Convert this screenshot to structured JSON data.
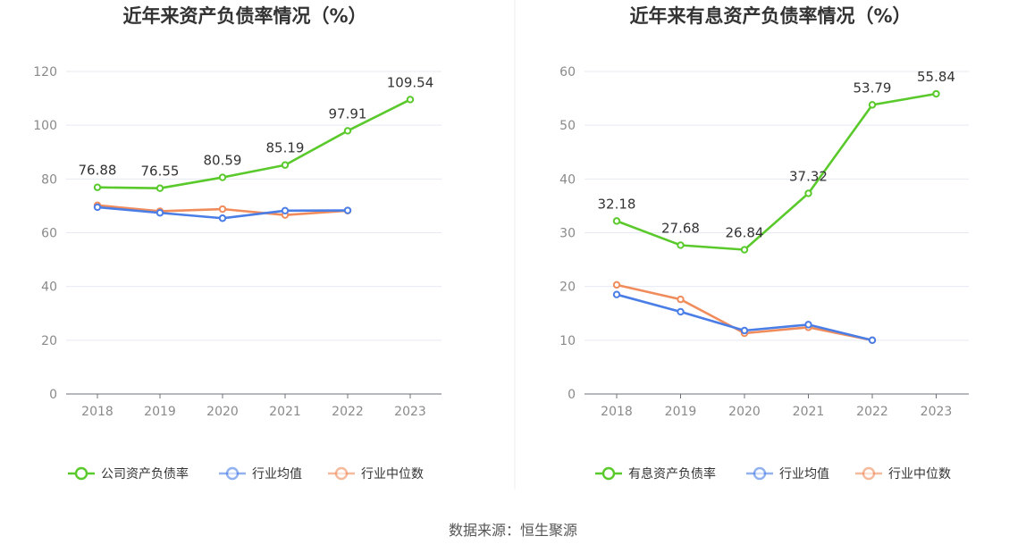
{
  "source_label": "数据来源：恒生聚源",
  "chart_data": [
    {
      "type": "line",
      "title": "近年来资产负债率情况（%）",
      "categories": [
        "2018",
        "2019",
        "2020",
        "2021",
        "2022",
        "2023"
      ],
      "ylim": [
        0,
        120
      ],
      "yticks": [
        0,
        20,
        40,
        60,
        80,
        100,
        120
      ],
      "grid": true,
      "legend_position": "bottom",
      "series": [
        {
          "name": "公司资产负债率",
          "color": "#5ac92c",
          "values": [
            76.88,
            76.55,
            80.59,
            85.19,
            97.91,
            109.54
          ],
          "labels": [
            "76.88",
            "76.55",
            "80.59",
            "85.19",
            "97.91",
            "109.54"
          ]
        },
        {
          "name": "行业均值",
          "color": "#4a7ee6",
          "values": [
            69.5,
            67.4,
            65.4,
            68.2,
            68.3,
            null
          ]
        },
        {
          "name": "行业中位数",
          "color": "#f08c5c",
          "values": [
            70.2,
            68.0,
            68.8,
            66.6,
            68.2,
            null
          ]
        }
      ]
    },
    {
      "type": "line",
      "title": "近年来有息资产负债率情况（%）",
      "categories": [
        "2018",
        "2019",
        "2020",
        "2021",
        "2022",
        "2023"
      ],
      "ylim": [
        0,
        60
      ],
      "yticks": [
        0,
        10,
        20,
        30,
        40,
        50,
        60
      ],
      "grid": true,
      "legend_position": "bottom",
      "series": [
        {
          "name": "有息资产负债率",
          "color": "#5ac92c",
          "values": [
            32.18,
            27.68,
            26.84,
            37.32,
            53.79,
            55.84
          ],
          "labels": [
            "32.18",
            "27.68",
            "26.84",
            "37.32",
            "53.79",
            "55.84"
          ]
        },
        {
          "name": "行业均值",
          "color": "#4a7ee6",
          "values": [
            18.5,
            15.3,
            11.8,
            12.9,
            10.0,
            null
          ]
        },
        {
          "name": "行业中位数",
          "color": "#f08c5c",
          "values": [
            20.3,
            17.6,
            11.3,
            12.4,
            10.0,
            null
          ]
        }
      ]
    }
  ]
}
